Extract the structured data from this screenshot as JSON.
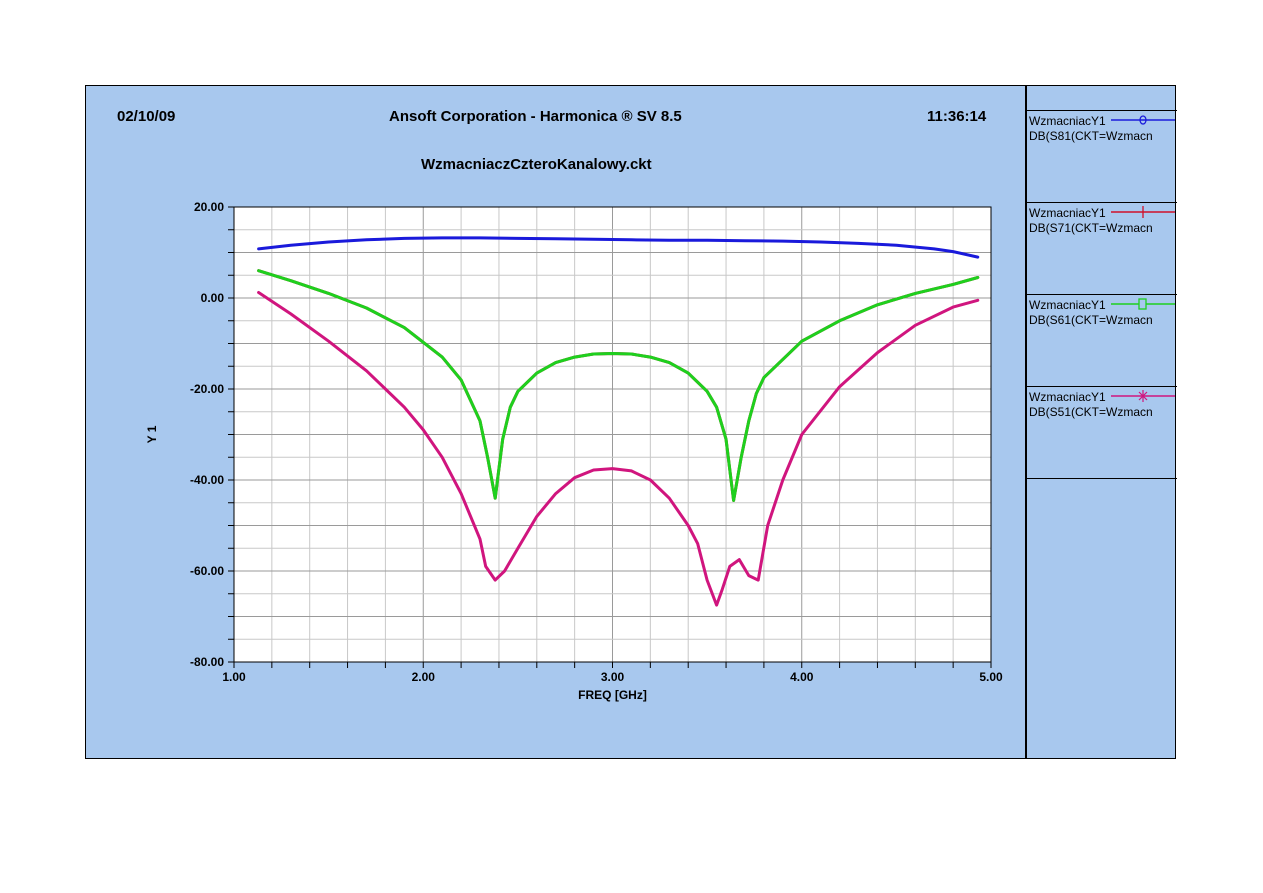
{
  "header": {
    "date": "02/10/09",
    "title": "Ansoft Corporation - Harmonica ® SV 8.5",
    "time": "11:36:14",
    "filename": "WzmacniaczCzteroKanalowy.ckt"
  },
  "legend": [
    {
      "name": "WzmacniacY1",
      "expr": "DB(S81(CKT=Wzmacn",
      "color": "#1a1adb",
      "marker": "circle-icon"
    },
    {
      "name": "WzmacniacY1",
      "expr": "DB(S71(CKT=Wzmacn",
      "color": "#d0102a",
      "marker": "vertical-bar-icon"
    },
    {
      "name": "WzmacniacY1",
      "expr": "DB(S61(CKT=Wzmacn",
      "color": "#1ed01e",
      "marker": "square-icon"
    },
    {
      "name": "WzmacniacY1",
      "expr": "DB(S51(CKT=Wzmacn",
      "color": "#d0157e",
      "marker": "asterisk-icon"
    }
  ],
  "chart_data": {
    "type": "line",
    "xlabel": "FREQ [GHz]",
    "ylabel": "Y 1",
    "xlim": [
      1.0,
      5.0
    ],
    "ylim": [
      -80.0,
      20.0
    ],
    "xticks": [
      "1.00",
      "2.00",
      "3.00",
      "4.00",
      "5.00"
    ],
    "yticks": [
      "20.00",
      "0.00",
      "-20.00",
      "-40.00",
      "-60.00",
      "-80.00"
    ],
    "grid": true,
    "series": [
      {
        "name": "DB(S81(CKT=Wzmacn",
        "color": "#1a1adb",
        "x": [
          1.13,
          1.3,
          1.5,
          1.7,
          1.9,
          2.1,
          2.3,
          2.5,
          2.7,
          2.9,
          3.1,
          3.3,
          3.5,
          3.7,
          3.9,
          4.1,
          4.3,
          4.5,
          4.7,
          4.8,
          4.93
        ],
        "y": [
          10.8,
          11.6,
          12.3,
          12.8,
          13.1,
          13.2,
          13.2,
          13.1,
          13.0,
          12.9,
          12.8,
          12.7,
          12.7,
          12.6,
          12.5,
          12.3,
          12.0,
          11.6,
          10.8,
          10.2,
          9.0
        ]
      },
      {
        "name": "DB(S71(CKT=Wzmacn",
        "color": "#d0102a",
        "x": [
          1.13,
          1.3,
          1.5,
          1.7,
          1.9,
          2.1,
          2.2,
          2.3,
          2.34,
          2.38,
          2.42,
          2.46,
          2.5,
          2.6,
          2.7,
          2.8,
          2.9,
          3.0,
          3.1,
          3.2,
          3.3,
          3.4,
          3.5,
          3.55,
          3.6,
          3.64,
          3.68,
          3.72,
          3.76,
          3.8,
          3.9,
          4.0,
          4.2,
          4.4,
          4.6,
          4.8,
          4.93
        ],
        "y": [
          6.0,
          3.8,
          1.0,
          -2.2,
          -6.5,
          -13.0,
          -18.0,
          -27.0,
          -35.0,
          -44.0,
          -31.0,
          -24.0,
          -20.5,
          -16.5,
          -14.2,
          -13.0,
          -12.3,
          -12.2,
          -12.3,
          -13.0,
          -14.2,
          -16.5,
          -20.5,
          -24.0,
          -31.0,
          -44.5,
          -35.0,
          -27.0,
          -21.0,
          -17.5,
          -13.5,
          -9.5,
          -5.0,
          -1.5,
          1.0,
          3.0,
          4.5
        ]
      },
      {
        "name": "DB(S61(CKT=Wzmacn",
        "color": "#1ed01e",
        "x": [
          1.13,
          1.3,
          1.5,
          1.7,
          1.9,
          2.1,
          2.2,
          2.3,
          2.34,
          2.38,
          2.42,
          2.46,
          2.5,
          2.6,
          2.7,
          2.8,
          2.9,
          3.0,
          3.1,
          3.2,
          3.3,
          3.4,
          3.5,
          3.55,
          3.6,
          3.64,
          3.68,
          3.72,
          3.76,
          3.8,
          3.9,
          4.0,
          4.2,
          4.4,
          4.6,
          4.8,
          4.93
        ],
        "y": [
          6.0,
          3.8,
          1.0,
          -2.2,
          -6.5,
          -13.0,
          -18.0,
          -27.0,
          -35.0,
          -44.0,
          -31.0,
          -24.0,
          -20.5,
          -16.5,
          -14.2,
          -13.0,
          -12.3,
          -12.2,
          -12.3,
          -13.0,
          -14.2,
          -16.5,
          -20.5,
          -24.0,
          -31.0,
          -44.5,
          -35.0,
          -27.0,
          -21.0,
          -17.5,
          -13.5,
          -9.5,
          -5.0,
          -1.5,
          1.0,
          3.0,
          4.5
        ]
      },
      {
        "name": "DB(S51(CKT=Wzmacn",
        "color": "#d0157e",
        "x": [
          1.13,
          1.3,
          1.5,
          1.7,
          1.9,
          2.0,
          2.1,
          2.2,
          2.3,
          2.33,
          2.38,
          2.43,
          2.5,
          2.6,
          2.7,
          2.8,
          2.9,
          3.0,
          3.1,
          3.2,
          3.3,
          3.4,
          3.45,
          3.5,
          3.55,
          3.58,
          3.62,
          3.67,
          3.72,
          3.77,
          3.82,
          3.9,
          4.0,
          4.2,
          4.4,
          4.6,
          4.8,
          4.93
        ],
        "y": [
          1.2,
          -3.5,
          -9.5,
          -16.0,
          -24.0,
          -29.0,
          -35.0,
          -43.0,
          -53.0,
          -59.0,
          -62.0,
          -60.0,
          -55.0,
          -48.0,
          -43.0,
          -39.5,
          -37.8,
          -37.5,
          -38.0,
          -40.0,
          -44.0,
          -50.0,
          -54.0,
          -62.0,
          -67.5,
          -64.0,
          -59.0,
          -57.5,
          -61.0,
          -62.0,
          -50.0,
          -40.0,
          -30.0,
          -19.5,
          -12.0,
          -6.0,
          -2.0,
          -0.5
        ]
      }
    ]
  }
}
